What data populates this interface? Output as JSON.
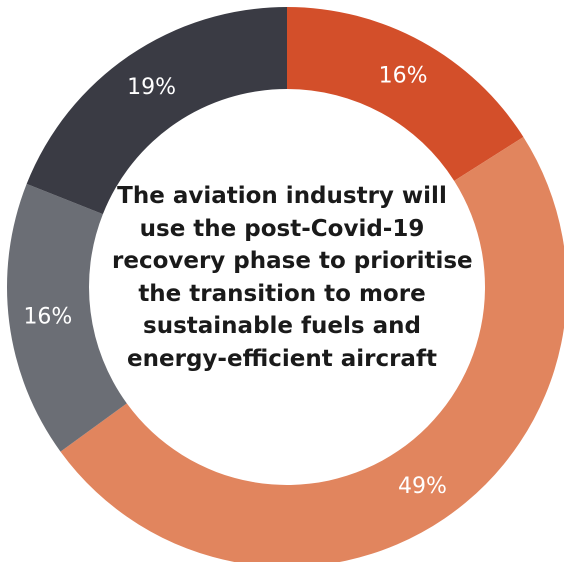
{
  "chart_data": {
    "type": "pie",
    "subtype": "donut",
    "center_text": [
      "The aviation industry will",
      "use the post-Covid-19",
      "recovery phase to prioritise",
      "the transition to more",
      "sustainable fuels and",
      "energy-efficient aircraft"
    ],
    "slices": [
      {
        "value": 16,
        "label": "16%",
        "color": "#d34f2a"
      },
      {
        "value": 49,
        "label": "49%",
        "color": "#e1855e"
      },
      {
        "value": 16,
        "label": "16%",
        "color": "#6b6e75"
      },
      {
        "value": 19,
        "label": "19%",
        "color": "#3a3b44"
      }
    ],
    "start_angle_deg": 0,
    "direction": "clockwise"
  }
}
